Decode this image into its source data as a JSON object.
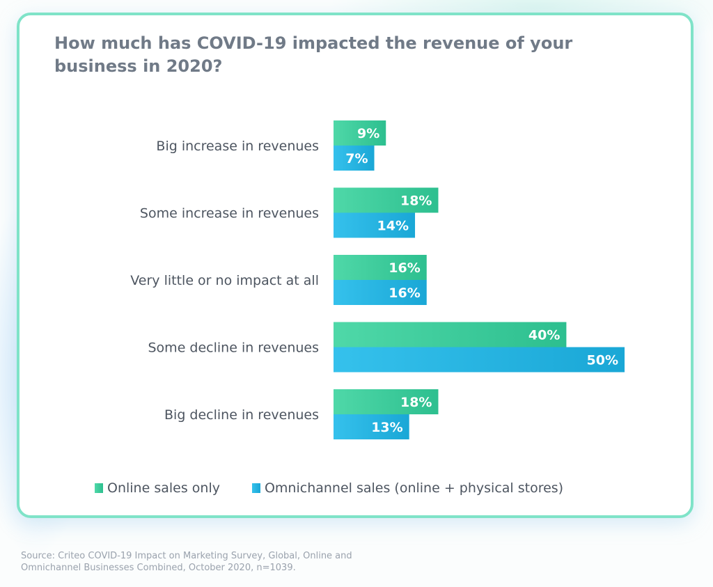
{
  "chart_data": {
    "type": "bar",
    "orientation": "horizontal",
    "title": "How much has COVID-19 impacted the revenue of your business in 2020?",
    "categories": [
      "Big increase in revenues",
      "Some increase in revenues",
      "Very little or no impact at all",
      "Some decline in revenues",
      "Big decline in revenues"
    ],
    "series": [
      {
        "name": "Online sales only",
        "values": [
          9,
          18,
          16,
          40,
          18
        ],
        "labels": [
          "9%",
          "18%",
          "16%",
          "40%",
          "18%"
        ],
        "color": "#2dbf8f",
        "color_light": "#4fd8a8"
      },
      {
        "name": "Omnichannel sales (online + physical stores)",
        "values": [
          7,
          14,
          16,
          50,
          13
        ],
        "labels": [
          "7%",
          "14%",
          "16%",
          "50%",
          "13%"
        ],
        "color": "#1aa7d6",
        "color_light": "#35c1ec"
      }
    ],
    "xlim": [
      0,
      50
    ],
    "grid": false,
    "legend": "bottom"
  },
  "source": {
    "line1": "Source: Criteo COVID-19 Impact on Marketing Survey, Global, Online and",
    "line2": "Omnichannel Businesses Combined, October 2020, n=1039."
  }
}
